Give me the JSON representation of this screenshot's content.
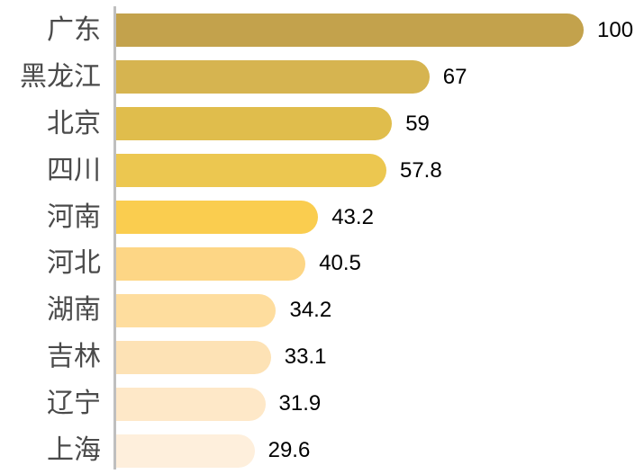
{
  "chart_data": {
    "type": "bar",
    "orientation": "horizontal",
    "title": "",
    "xlabel": "",
    "ylabel": "",
    "categories": [
      "广东",
      "黑龙江",
      "北京",
      "四川",
      "河南",
      "河北",
      "湖南",
      "吉林",
      "辽宁",
      "上海"
    ],
    "values": [
      100,
      67,
      59,
      57.8,
      43.2,
      40.5,
      34.2,
      33.1,
      31.9,
      29.6
    ],
    "value_labels": [
      "100",
      "67",
      "59",
      "57.8",
      "43.2",
      "40.5",
      "34.2",
      "33.1",
      "31.9",
      "29.6"
    ],
    "bar_colors": [
      "#C3A24C",
      "#D6B450",
      "#E0BD4C",
      "#ECC750",
      "#FACD4F",
      "#FDD685",
      "#FEDD9E",
      "#FDE2B5",
      "#FEE8C8",
      "#FEEFDC"
    ],
    "xlim": [
      0,
      100
    ],
    "grid": false,
    "legend": false,
    "bar_end_style": "rounded-right",
    "axis_line_color": "#BFBFBF",
    "category_label_color": "#4A4A4A",
    "value_label_color": "#000000",
    "background_color": "#FFFFFF"
  }
}
